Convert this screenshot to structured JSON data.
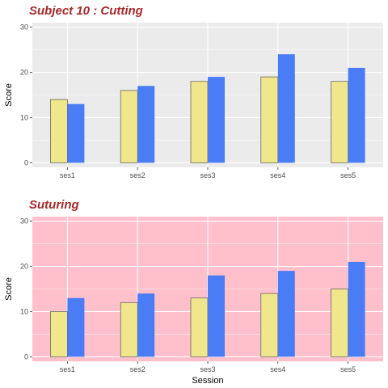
{
  "chart_data": [
    {
      "type": "bar",
      "title": "Subject 10 : Cutting",
      "xlabel": "",
      "ylabel": "Score",
      "ylim": [
        -1,
        31
      ],
      "yticks": [
        0,
        10,
        20,
        30
      ],
      "categories": [
        "ses1",
        "ses2",
        "ses3",
        "ses4",
        "ses5"
      ],
      "series": [
        {
          "color": "#f0e68c",
          "values": [
            14,
            16,
            18,
            19,
            18
          ]
        },
        {
          "color": "#4a7cf5",
          "values": [
            13,
            17,
            19,
            24,
            21
          ]
        }
      ],
      "panel_background": "#ebebeb",
      "grid": true,
      "legend": "none"
    },
    {
      "type": "bar",
      "title": "Suturing",
      "xlabel": "Session",
      "ylabel": "Score",
      "ylim": [
        -1,
        31
      ],
      "yticks": [
        0,
        10,
        20,
        30
      ],
      "categories": [
        "ses1",
        "ses2",
        "ses3",
        "ses4",
        "ses5"
      ],
      "series": [
        {
          "color": "#f0e68c",
          "values": [
            10,
            12,
            13,
            14,
            15
          ]
        },
        {
          "color": "#4a7cf5",
          "values": [
            13,
            14,
            18,
            19,
            21
          ]
        }
      ],
      "panel_background": "#ffc0cb",
      "grid": true,
      "legend": "none"
    }
  ],
  "colors": {
    "title": "#a52a2a",
    "bar_outline": "#555555",
    "gridline": "#ffffff"
  }
}
